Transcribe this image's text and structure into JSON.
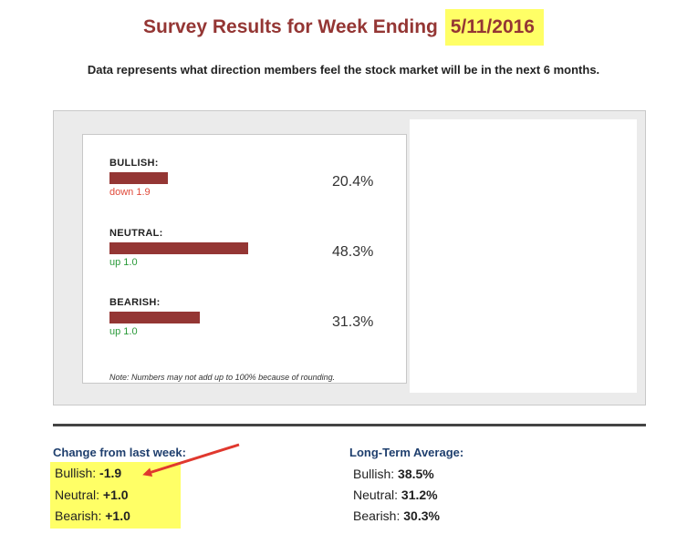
{
  "header": {
    "title": "Survey Results for Week Ending",
    "date": "5/11/2016",
    "subtitle": "Data represents what direction members feel the stock market will be in the next 6 months."
  },
  "colors": {
    "title": "#943634",
    "bar": "#943634",
    "highlight": "#ffff66",
    "down": "#e04a3a",
    "up": "#2a9a3a",
    "arrow": "#e0382e",
    "heading": "#1f3f6e"
  },
  "chart": {
    "rows": [
      {
        "label": "BULLISH:",
        "value": 20.4,
        "value_text": "20.4%",
        "change": "down 1.9",
        "direction": "down"
      },
      {
        "label": "NEUTRAL:",
        "value": 48.3,
        "value_text": "48.3%",
        "change": "up 1.0",
        "direction": "up"
      },
      {
        "label": "BEARISH:",
        "value": 31.3,
        "value_text": "31.3%",
        "change": "up 1.0",
        "direction": "up"
      }
    ],
    "note": "Note: Numbers may not add up to 100% because of rounding."
  },
  "change_from_last_week": {
    "heading": "Change from last week:",
    "items": [
      {
        "label": "Bullish:",
        "value": "-1.9"
      },
      {
        "label": "Neutral:",
        "value": "+1.0"
      },
      {
        "label": "Bearish:",
        "value": "+1.0"
      }
    ]
  },
  "long_term_average": {
    "heading": "Long-Term Average:",
    "items": [
      {
        "label": "Bullish:",
        "value": "38.5%"
      },
      {
        "label": "Neutral:",
        "value": "31.2%"
      },
      {
        "label": "Bearish:",
        "value": "30.3%"
      }
    ]
  }
}
